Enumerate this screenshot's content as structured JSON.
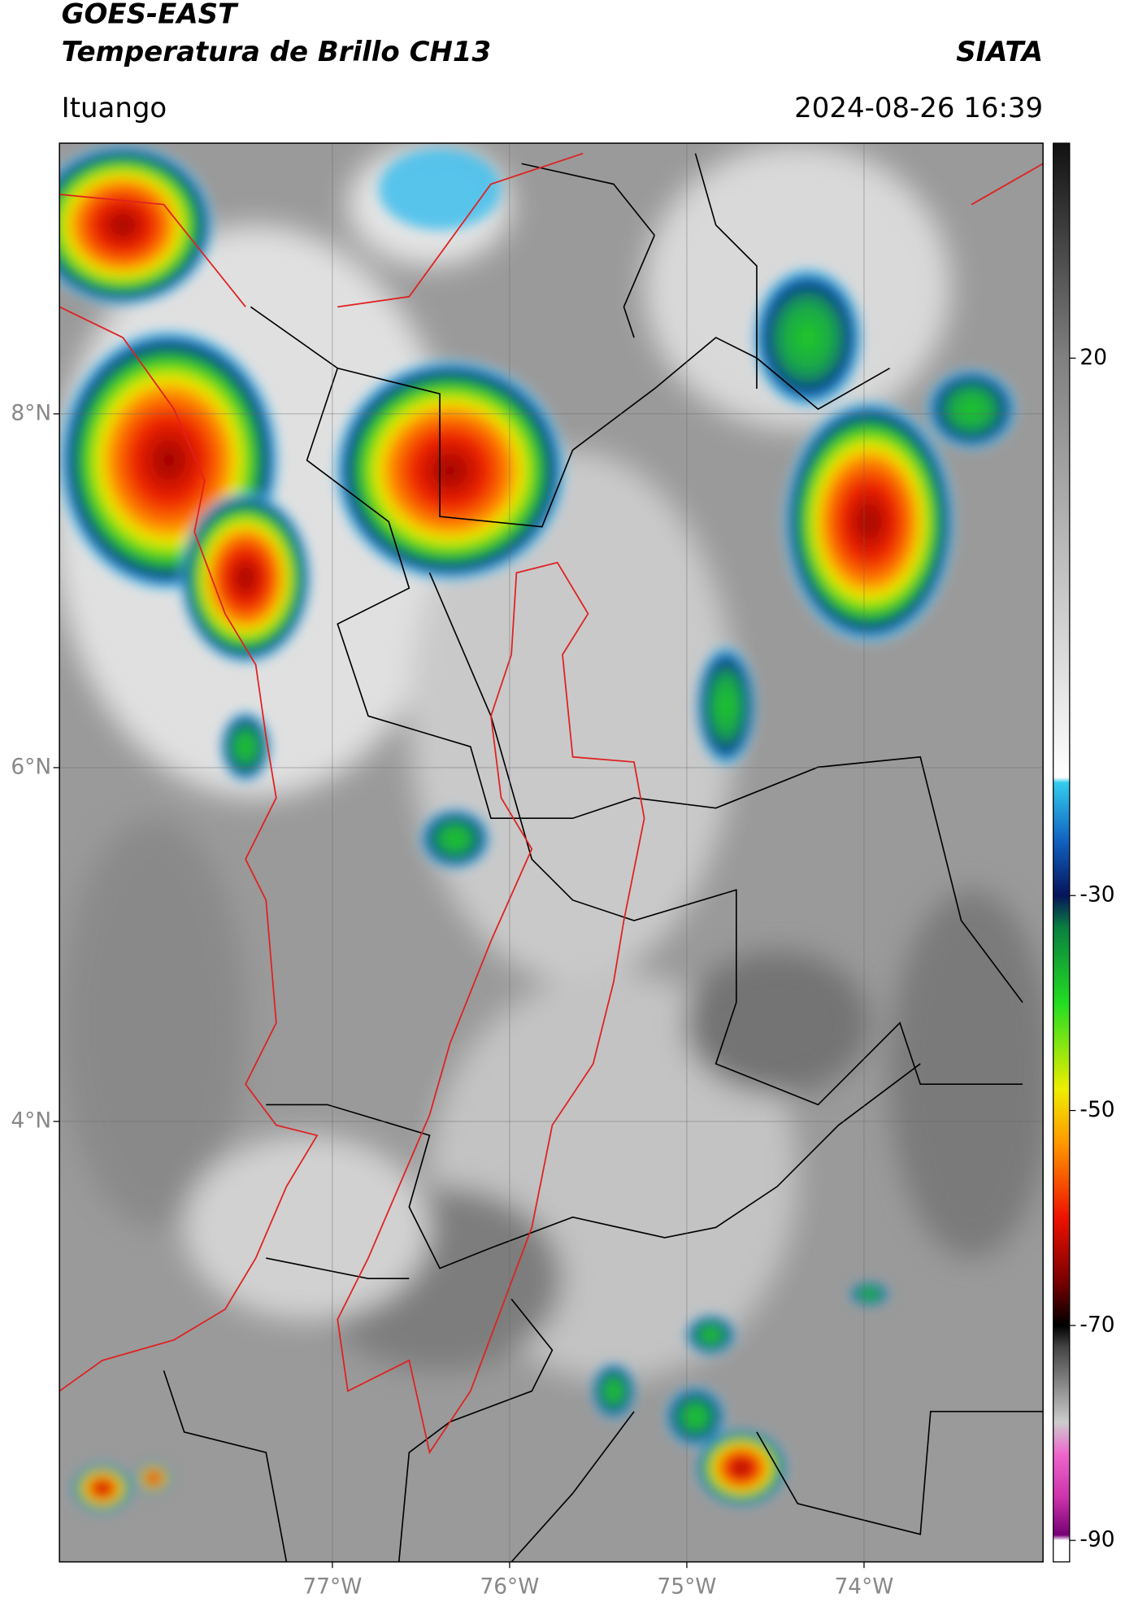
{
  "header": {
    "title": "GOES-EAST",
    "subtitle": "Temperatura de Brillo CH13",
    "agency": "SIATA",
    "location": "Ituango",
    "timestamp": "2024-08-26 16:39"
  },
  "map": {
    "xlim": [
      -78.54,
      -72.99
    ],
    "ylim": [
      1.51,
      9.53
    ],
    "xticks": [
      {
        "value": -77,
        "label": "77°W"
      },
      {
        "value": -76,
        "label": "76°W"
      },
      {
        "value": -75,
        "label": "75°W"
      },
      {
        "value": -74,
        "label": "74°W"
      }
    ],
    "yticks": [
      {
        "value": 4,
        "label": "4°N"
      },
      {
        "value": 6,
        "label": "6°N"
      },
      {
        "value": 8,
        "label": "8°N"
      }
    ],
    "grid": true
  },
  "colorbar": {
    "clim": [
      -92,
      40
    ],
    "ticks": [
      -90,
      -70,
      -50,
      -30,
      20
    ],
    "colormap": [
      {
        "value": 40,
        "color": "#111111"
      },
      {
        "value": 20,
        "color": "#808080"
      },
      {
        "value": -19,
        "color": "#ffffff"
      },
      {
        "value": -19.5,
        "color": "#33ccee"
      },
      {
        "value": -25,
        "color": "#1060c0"
      },
      {
        "value": -30,
        "color": "#06145a"
      },
      {
        "value": -33,
        "color": "#0a8040"
      },
      {
        "value": -40,
        "color": "#22dd22"
      },
      {
        "value": -48,
        "color": "#eeee00"
      },
      {
        "value": -53,
        "color": "#ff9900"
      },
      {
        "value": -60,
        "color": "#ee1100"
      },
      {
        "value": -66,
        "color": "#770000"
      },
      {
        "value": -70,
        "color": "#000000"
      },
      {
        "value": -72,
        "color": "#444444"
      },
      {
        "value": -79,
        "color": "#cccccc"
      },
      {
        "value": -82,
        "color": "#ee66cc"
      },
      {
        "value": -86,
        "color": "#cc33aa"
      },
      {
        "value": -89.5,
        "color": "#770077"
      },
      {
        "value": -90,
        "color": "#ffffff"
      },
      {
        "value": -92,
        "color": "#ffffff"
      }
    ]
  }
}
